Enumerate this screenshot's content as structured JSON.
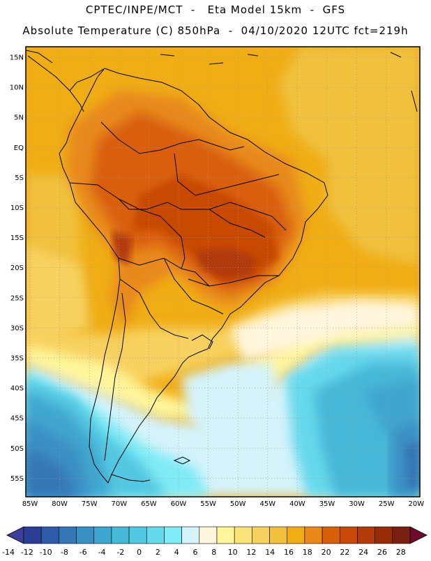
{
  "title": {
    "line1": "CPTEC/INPE/MCT  -   Eta Model 15km  -  GFS",
    "line2": "Absolute Temperature (C) 850hPa  -  04/10/2020 12UTC fct=219h"
  },
  "map": {
    "lat_labels": [
      "15N",
      "10N",
      "5N",
      "EQ",
      "5S",
      "10S",
      "15S",
      "20S",
      "25S",
      "30S",
      "35S",
      "40S",
      "45S",
      "50S",
      "55S"
    ],
    "lon_labels": [
      "85W",
      "80W",
      "75W",
      "70W",
      "65W",
      "60W",
      "55W",
      "50W",
      "45W",
      "40W",
      "35W",
      "30W",
      "25W",
      "20W"
    ]
  },
  "colorbar": {
    "labels": [
      "-14",
      "-12",
      "-10",
      "-8",
      "-6",
      "-4",
      "-2",
      "0",
      "2",
      "4",
      "6",
      "8",
      "10",
      "12",
      "14",
      "16",
      "18",
      "20",
      "22",
      "24",
      "26",
      "28"
    ],
    "colors": [
      "#2a3f93",
      "#2f5aa8",
      "#3577b6",
      "#3a8fc3",
      "#3fa6cf",
      "#46b8d8",
      "#52c8e2",
      "#66d9ec",
      "#7febf5",
      "#d4f3fb",
      "#fff6dd",
      "#fff59a",
      "#fbe37a",
      "#f7d15e",
      "#f1c13c",
      "#f0ad14",
      "#e8891a",
      "#d95e0a",
      "#c84a06",
      "#b23b08",
      "#962b06",
      "#7a2010"
    ],
    "arrow_low": "#3d3d9c",
    "arrow_high": "#6e0a2a"
  }
}
